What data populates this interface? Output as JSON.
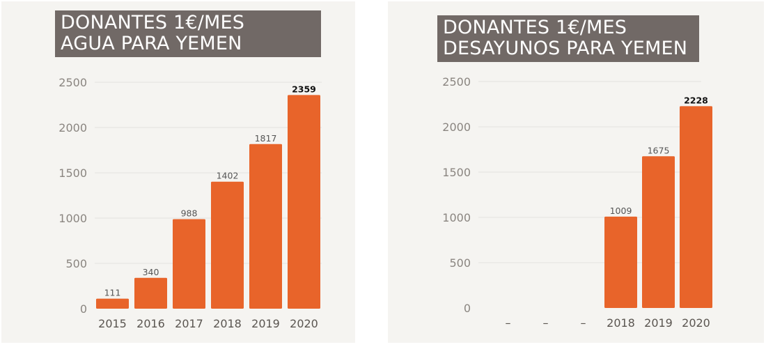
{
  "colors": {
    "bar": "#e8642a",
    "title_bg": "#716966",
    "panel_bg": "#f5f4f1"
  },
  "chart_data": [
    {
      "type": "bar",
      "title_lines": [
        "DONANTES 1€/MES",
        "AGUA PARA YEMEN"
      ],
      "categories": [
        "2015",
        "2016",
        "2017",
        "2018",
        "2019",
        "2020"
      ],
      "values": [
        111,
        340,
        988,
        1402,
        1817,
        2359
      ],
      "value_labels": [
        "111",
        "340",
        "988",
        "1402",
        "1817",
        "2359"
      ],
      "highlight_last_label": true,
      "yticks": [
        0,
        500,
        1000,
        1500,
        2000,
        2500
      ],
      "ylim": [
        0,
        2500
      ],
      "xlabel": "",
      "ylabel": "",
      "grid": true,
      "legend": "none"
    },
    {
      "type": "bar",
      "title_lines": [
        "DONANTES 1€/MES",
        "DESAYUNOS PARA YEMEN"
      ],
      "categories": [
        "–",
        "–",
        "–",
        "2018",
        "2019",
        "2020"
      ],
      "values": [
        null,
        null,
        null,
        1009,
        1675,
        2228
      ],
      "value_labels": [
        "",
        "",
        "",
        "1009",
        "1675",
        "2228"
      ],
      "highlight_last_label": true,
      "yticks": [
        0,
        500,
        1000,
        1500,
        2000,
        2500
      ],
      "ylim": [
        0,
        2500
      ],
      "xlabel": "",
      "ylabel": "",
      "grid": true,
      "legend": "none"
    }
  ]
}
